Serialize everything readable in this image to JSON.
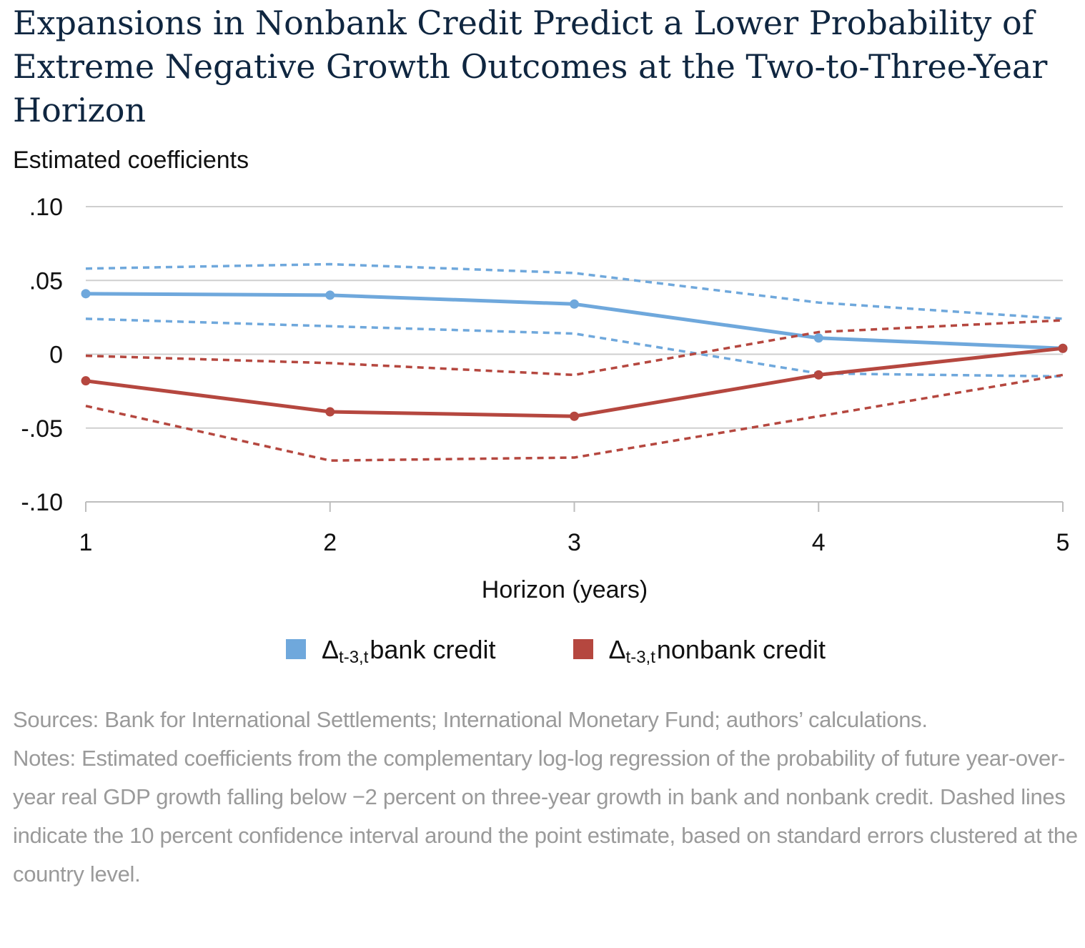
{
  "title": "Expansions in Nonbank Credit Predict a Lower Probability of Extreme Negative Growth Outcomes at the Two-to-Three-Year Horizon",
  "chart_data": {
    "type": "line",
    "ylabel": "Estimated coefficients",
    "xlabel": "Horizon (years)",
    "x": [
      1,
      2,
      3,
      4,
      5
    ],
    "ylim": [
      -0.1,
      0.1
    ],
    "yticks": [
      {
        "value": 0.1,
        "label": ".10"
      },
      {
        "value": 0.05,
        "label": ".05"
      },
      {
        "value": 0.0,
        "label": "0"
      },
      {
        "value": -0.05,
        "label": "-.05"
      },
      {
        "value": -0.1,
        "label": "-.10"
      }
    ],
    "xticks": [
      "1",
      "2",
      "3",
      "4",
      "5"
    ],
    "grid": true,
    "legend_position": "bottom",
    "series": [
      {
        "name": "bank credit",
        "legend_symbol": "Δ",
        "legend_sub": "t-3,t",
        "color": "#6fa8dc",
        "style": "solid",
        "markers": true,
        "values": [
          0.041,
          0.04,
          0.034,
          0.011,
          0.004
        ]
      },
      {
        "name": "bank credit upper bound",
        "color": "#6fa8dc",
        "style": "dashed",
        "markers": false,
        "values": [
          0.058,
          0.061,
          0.055,
          0.035,
          0.024
        ]
      },
      {
        "name": "bank credit lower bound",
        "color": "#6fa8dc",
        "style": "dashed",
        "markers": false,
        "values": [
          0.024,
          0.019,
          0.014,
          -0.013,
          -0.015
        ]
      },
      {
        "name": "nonbank credit",
        "legend_symbol": "Δ",
        "legend_sub": "t-3,t",
        "color": "#b5473f",
        "style": "solid",
        "markers": true,
        "values": [
          -0.018,
          -0.039,
          -0.042,
          -0.014,
          0.004
        ]
      },
      {
        "name": "nonbank credit upper bound",
        "color": "#b5473f",
        "style": "dashed",
        "markers": false,
        "values": [
          -0.001,
          -0.006,
          -0.014,
          0.015,
          0.023
        ]
      },
      {
        "name": "nonbank credit lower bound",
        "color": "#b5473f",
        "style": "dashed",
        "markers": false,
        "values": [
          -0.035,
          -0.072,
          -0.07,
          -0.042,
          -0.014
        ]
      }
    ]
  },
  "legend": [
    {
      "symbol": "Δ",
      "sub": "t-3,t",
      "label": "bank credit",
      "color": "#6fa8dc"
    },
    {
      "symbol": "Δ",
      "sub": "t-3,t",
      "label": "nonbank credit",
      "color": "#b5473f"
    }
  ],
  "sources": "Sources: Bank for International Settlements; International Monetary Fund; authors’ calculations.",
  "notes": "Notes: Estimated coefficients from the complementary log-log regression of the probability of future year-over-year real GDP growth falling below −2 percent on three-year growth in bank and nonbank credit. Dashed lines indicate the 10 percent confidence interval around the point estimate, based on standard errors clustered at the country level."
}
